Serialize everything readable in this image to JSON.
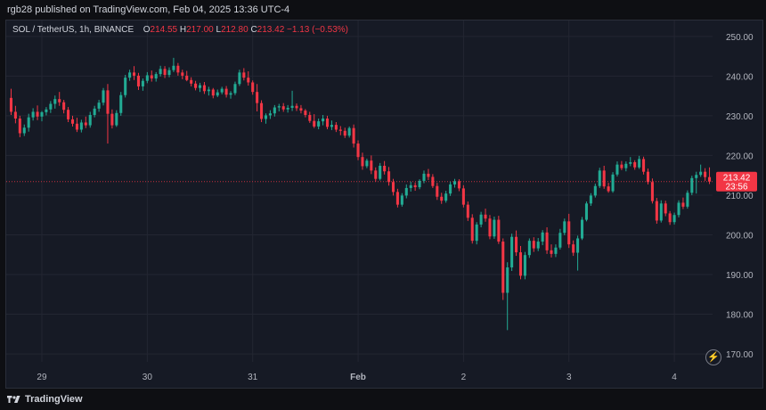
{
  "header": {
    "published_text": "rgb28 published on TradingView.com, Feb 04, 2025 13:36 UTC-4"
  },
  "legend": {
    "symbol": "SOL / TetherUS, 1h, BINANCE",
    "open_label": "O",
    "open_value": "214.55",
    "high_label": "H",
    "high_value": "217.00",
    "low_label": "L",
    "low_value": "212.80",
    "close_label": "C",
    "close_value": "213.42",
    "change": "−1.13 (−0.53%)"
  },
  "price_tag": {
    "price": "213.42",
    "countdown": "23:56"
  },
  "branding": {
    "name": "TradingView"
  },
  "colors": {
    "up": "#22ab94",
    "down": "#f23645",
    "background": "#161a25",
    "grid": "#232632",
    "text": "#d1d4dc",
    "axis_text": "#b2b5be",
    "price_line": "#f23645"
  },
  "chart_data": {
    "type": "candlestick",
    "title": "SOL / TetherUS, 1h, BINANCE",
    "xlabel": "",
    "ylabel": "",
    "ylim": [
      168,
      254
    ],
    "yticks": [
      170,
      180,
      190,
      200,
      210,
      220,
      230,
      240,
      250
    ],
    "xticks": [
      {
        "label": "29",
        "index": 7,
        "bold": false
      },
      {
        "label": "30",
        "index": 31,
        "bold": false
      },
      {
        "label": "31",
        "index": 55,
        "bold": false
      },
      {
        "label": "Feb",
        "index": 79,
        "bold": true
      },
      {
        "label": "2",
        "index": 103,
        "bold": false
      },
      {
        "label": "3",
        "index": 127,
        "bold": false
      },
      {
        "label": "4",
        "index": 151,
        "bold": false
      }
    ],
    "last_price": 213.42,
    "grid": true,
    "candles": [
      [
        234.5,
        236.8,
        230.2,
        231.0
      ],
      [
        231.0,
        232.5,
        228.1,
        229.3
      ],
      [
        229.3,
        230.0,
        224.6,
        225.6
      ],
      [
        225.6,
        227.8,
        224.9,
        227.0
      ],
      [
        227.0,
        230.5,
        226.0,
        229.6
      ],
      [
        229.6,
        231.9,
        228.8,
        231.0
      ],
      [
        231.0,
        232.6,
        228.9,
        229.8
      ],
      [
        229.8,
        231.2,
        228.6,
        230.9
      ],
      [
        230.9,
        232.2,
        230.1,
        231.6
      ],
      [
        231.6,
        233.7,
        230.7,
        233.0
      ],
      [
        233.0,
        235.1,
        231.8,
        234.2
      ],
      [
        234.2,
        236.0,
        232.5,
        233.4
      ],
      [
        233.4,
        234.0,
        230.6,
        231.5
      ],
      [
        231.5,
        232.2,
        228.4,
        229.1
      ],
      [
        229.1,
        230.0,
        227.3,
        228.0
      ],
      [
        228.0,
        229.5,
        225.9,
        226.5
      ],
      [
        226.5,
        229.0,
        225.8,
        228.3
      ],
      [
        228.3,
        229.8,
        226.9,
        227.6
      ],
      [
        227.6,
        231.0,
        227.0,
        230.2
      ],
      [
        230.2,
        232.5,
        229.6,
        231.8
      ],
      [
        231.8,
        234.0,
        231.0,
        233.3
      ],
      [
        233.3,
        237.0,
        232.6,
        236.4
      ],
      [
        236.4,
        238.0,
        223.0,
        230.5
      ],
      [
        230.5,
        231.6,
        226.8,
        227.6
      ],
      [
        227.6,
        231.4,
        227.2,
        230.7
      ],
      [
        230.7,
        236.0,
        230.0,
        235.2
      ],
      [
        235.2,
        240.3,
        234.6,
        239.6
      ],
      [
        239.6,
        241.6,
        238.8,
        240.9
      ],
      [
        240.9,
        242.5,
        239.0,
        240.1
      ],
      [
        240.1,
        240.8,
        236.5,
        237.4
      ],
      [
        237.4,
        239.4,
        236.3,
        238.8
      ],
      [
        238.8,
        241.0,
        238.2,
        240.2
      ],
      [
        240.2,
        241.4,
        238.6,
        239.4
      ],
      [
        239.4,
        241.0,
        238.6,
        240.5
      ],
      [
        240.5,
        242.6,
        239.9,
        241.8
      ],
      [
        241.8,
        242.5,
        239.5,
        240.3
      ],
      [
        240.3,
        242.2,
        239.7,
        241.5
      ],
      [
        241.5,
        244.6,
        241.0,
        242.6
      ],
      [
        242.6,
        243.3,
        240.1,
        240.9
      ],
      [
        240.9,
        241.6,
        239.2,
        240.1
      ],
      [
        240.1,
        241.3,
        238.7,
        239.0
      ],
      [
        239.0,
        239.7,
        237.4,
        238.1
      ],
      [
        238.1,
        238.8,
        236.4,
        237.0
      ],
      [
        237.0,
        238.3,
        236.0,
        237.7
      ],
      [
        237.7,
        238.5,
        235.5,
        236.2
      ],
      [
        236.2,
        237.3,
        235.1,
        236.6
      ],
      [
        236.6,
        237.0,
        234.4,
        235.1
      ],
      [
        235.1,
        236.6,
        234.7,
        235.9
      ],
      [
        235.9,
        237.3,
        235.4,
        236.8
      ],
      [
        236.8,
        237.5,
        234.6,
        235.3
      ],
      [
        235.3,
        236.2,
        234.3,
        235.7
      ],
      [
        235.7,
        238.6,
        235.2,
        238.0
      ],
      [
        238.0,
        241.6,
        237.5,
        240.9
      ],
      [
        240.9,
        242.0,
        238.9,
        239.6
      ],
      [
        239.6,
        241.2,
        237.6,
        238.4
      ],
      [
        238.4,
        238.9,
        235.3,
        236.0
      ],
      [
        236.0,
        238.0,
        231.1,
        233.2
      ],
      [
        233.2,
        233.9,
        228.4,
        229.2
      ],
      [
        229.2,
        230.6,
        228.0,
        230.1
      ],
      [
        230.1,
        231.4,
        229.2,
        230.6
      ],
      [
        230.6,
        232.7,
        229.8,
        232.1
      ],
      [
        232.1,
        233.0,
        231.1,
        232.4
      ],
      [
        232.4,
        233.2,
        231.0,
        231.6
      ],
      [
        231.6,
        232.7,
        230.8,
        232.0
      ],
      [
        232.0,
        236.3,
        231.2,
        232.5
      ],
      [
        232.5,
        233.1,
        231.2,
        231.9
      ],
      [
        231.9,
        232.7,
        230.6,
        231.3
      ],
      [
        231.3,
        231.7,
        229.6,
        230.2
      ],
      [
        230.2,
        231.0,
        228.2,
        228.7
      ],
      [
        228.7,
        230.4,
        226.9,
        227.3
      ],
      [
        227.3,
        229.3,
        226.6,
        228.6
      ],
      [
        228.6,
        230.2,
        227.6,
        229.3
      ],
      [
        229.3,
        230.0,
        226.6,
        227.2
      ],
      [
        227.2,
        228.8,
        226.4,
        227.7
      ],
      [
        227.7,
        228.4,
        225.9,
        226.5
      ],
      [
        226.5,
        227.4,
        225.1,
        226.2
      ],
      [
        226.2,
        227.0,
        224.4,
        225.0
      ],
      [
        225.0,
        227.3,
        224.5,
        226.9
      ],
      [
        226.9,
        227.8,
        222.0,
        223.0
      ],
      [
        223.0,
        223.8,
        218.8,
        219.6
      ],
      [
        219.6,
        220.7,
        216.4,
        217.3
      ],
      [
        217.3,
        219.2,
        216.8,
        218.7
      ],
      [
        218.7,
        220.0,
        215.3,
        216.2
      ],
      [
        216.2,
        217.0,
        213.4,
        214.1
      ],
      [
        214.1,
        218.1,
        213.7,
        217.4
      ],
      [
        217.4,
        218.6,
        215.2,
        216.0
      ],
      [
        216.0,
        217.1,
        212.4,
        213.3
      ],
      [
        213.3,
        214.1,
        209.9,
        210.8
      ],
      [
        210.8,
        211.6,
        206.9,
        207.6
      ],
      [
        207.6,
        210.5,
        207.1,
        209.9
      ],
      [
        209.9,
        212.7,
        209.2,
        211.8
      ],
      [
        211.8,
        213.4,
        210.9,
        212.5
      ],
      [
        212.5,
        213.2,
        211.1,
        212.0
      ],
      [
        212.0,
        214.0,
        211.5,
        213.6
      ],
      [
        213.6,
        216.2,
        213.0,
        215.4
      ],
      [
        215.4,
        216.6,
        213.8,
        214.6
      ],
      [
        214.6,
        215.3,
        211.8,
        212.3
      ],
      [
        212.3,
        213.1,
        208.8,
        209.6
      ],
      [
        209.6,
        210.6,
        207.8,
        208.6
      ],
      [
        208.6,
        211.1,
        208.1,
        210.4
      ],
      [
        210.4,
        213.4,
        209.8,
        212.7
      ],
      [
        212.7,
        214.1,
        211.9,
        213.5
      ],
      [
        213.5,
        214.0,
        211.0,
        211.7
      ],
      [
        211.7,
        212.5,
        206.9,
        207.6
      ],
      [
        207.6,
        208.4,
        203.5,
        204.3
      ],
      [
        204.3,
        205.2,
        197.8,
        198.5
      ],
      [
        198.5,
        203.2,
        197.6,
        202.6
      ],
      [
        202.6,
        205.8,
        201.9,
        205.1
      ],
      [
        205.1,
        206.6,
        203.3,
        204.1
      ],
      [
        204.1,
        205.0,
        198.9,
        199.6
      ],
      [
        199.6,
        204.6,
        199.0,
        203.8
      ],
      [
        203.8,
        204.8,
        197.7,
        198.3
      ],
      [
        198.3,
        199.1,
        183.6,
        185.4
      ],
      [
        185.4,
        193.1,
        176.0,
        191.8
      ],
      [
        191.8,
        200.3,
        190.9,
        199.5
      ],
      [
        199.5,
        201.1,
        194.7,
        195.6
      ],
      [
        195.6,
        197.2,
        188.8,
        189.7
      ],
      [
        189.7,
        195.7,
        188.8,
        194.9
      ],
      [
        194.9,
        199.1,
        194.2,
        198.5
      ],
      [
        198.5,
        199.4,
        195.7,
        196.6
      ],
      [
        196.6,
        199.2,
        195.9,
        198.3
      ],
      [
        198.3,
        201.2,
        197.4,
        200.6
      ],
      [
        200.6,
        201.9,
        195.2,
        196.1
      ],
      [
        196.1,
        197.6,
        194.3,
        195.2
      ],
      [
        195.2,
        197.6,
        194.4,
        196.8
      ],
      [
        196.8,
        201.5,
        196.3,
        200.5
      ],
      [
        200.5,
        204.1,
        199.9,
        203.4
      ],
      [
        203.4,
        205.3,
        196.7,
        197.6
      ],
      [
        197.6,
        198.6,
        194.7,
        195.5
      ],
      [
        195.5,
        199.8,
        191.0,
        199.1
      ],
      [
        199.1,
        204.5,
        198.7,
        203.8
      ],
      [
        203.8,
        208.4,
        203.4,
        207.9
      ],
      [
        207.9,
        210.5,
        207.3,
        209.9
      ],
      [
        209.9,
        212.9,
        209.4,
        212.3
      ],
      [
        212.3,
        216.9,
        211.8,
        216.2
      ],
      [
        216.2,
        217.4,
        211.6,
        212.2
      ],
      [
        212.2,
        213.1,
        210.6,
        211.0
      ],
      [
        211.0,
        215.8,
        210.6,
        215.2
      ],
      [
        215.2,
        218.5,
        214.7,
        217.7
      ],
      [
        217.7,
        218.6,
        216.3,
        216.8
      ],
      [
        216.8,
        218.5,
        216.0,
        217.9
      ],
      [
        217.9,
        219.6,
        217.3,
        218.3
      ],
      [
        218.3,
        218.8,
        216.4,
        217.0
      ],
      [
        217.0,
        219.9,
        216.6,
        219.1
      ],
      [
        219.1,
        219.7,
        215.2,
        215.9
      ],
      [
        215.9,
        216.7,
        212.7,
        213.3
      ],
      [
        213.3,
        214.2,
        207.9,
        208.5
      ],
      [
        208.5,
        209.3,
        202.8,
        203.6
      ],
      [
        203.6,
        208.7,
        203.1,
        207.9
      ],
      [
        207.9,
        208.6,
        204.7,
        205.4
      ],
      [
        205.4,
        206.0,
        202.5,
        203.2
      ],
      [
        203.2,
        205.6,
        202.6,
        205.0
      ],
      [
        205.0,
        208.7,
        204.4,
        208.1
      ],
      [
        208.1,
        209.4,
        206.5,
        207.1
      ],
      [
        207.1,
        211.2,
        206.6,
        210.6
      ],
      [
        210.6,
        214.9,
        210.0,
        214.3
      ],
      [
        214.3,
        215.9,
        210.4,
        215.1
      ],
      [
        215.1,
        217.7,
        214.6,
        215.9
      ],
      [
        215.9,
        216.8,
        213.6,
        214.55
      ],
      [
        214.55,
        217.0,
        212.8,
        213.42
      ]
    ]
  }
}
